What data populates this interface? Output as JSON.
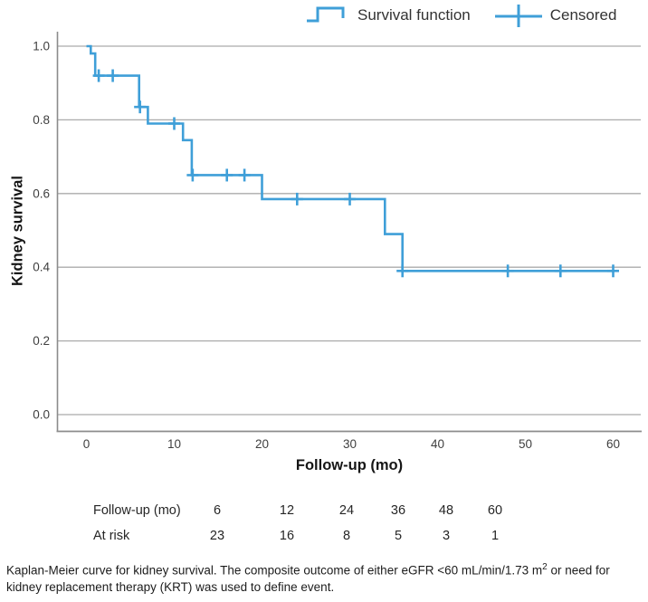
{
  "colors": {
    "curve_blue": "#3f9fd8",
    "grid_gray": "#ababab",
    "axis_gray": "#8c8c8c",
    "tick_text": "#3f3f3f",
    "title_text": "#161616",
    "legend_text": "#333333",
    "table_text": "#262626",
    "caption_text": "#1c1c1c"
  },
  "chart_data": {
    "type": "line",
    "subtype": "kaplan_meier_step",
    "title": "",
    "xlabel": "Follow-up (mo)",
    "ylabel": "Kidney survival",
    "xlim": [
      0,
      62
    ],
    "ylim": [
      0.0,
      1.05
    ],
    "x_ticks": [
      0,
      10,
      20,
      30,
      40,
      50,
      60
    ],
    "x_tick_labels": [
      "0",
      "10",
      "20",
      "30",
      "40",
      "50",
      "60"
    ],
    "y_ticks": [
      0.0,
      0.2,
      0.4,
      0.6,
      0.8,
      1.0
    ],
    "y_tick_labels": [
      "0.0",
      "0.2",
      "0.4",
      "0.6",
      "0.8",
      "1.0"
    ],
    "grid": "horizontal",
    "legend_position": "top",
    "legend_labels": [
      "Survival function",
      "Censored"
    ],
    "survival_steps": [
      [
        0,
        1.0
      ],
      [
        0.5,
        0.98
      ],
      [
        1,
        0.92
      ],
      [
        6,
        0.835
      ],
      [
        7,
        0.79
      ],
      [
        11,
        0.745
      ],
      [
        12,
        0.65
      ],
      [
        20,
        0.585
      ],
      [
        34,
        0.49
      ],
      [
        36,
        0.39
      ],
      [
        60,
        0.39
      ]
    ],
    "censored_points": [
      [
        1.4,
        0.92
      ],
      [
        3,
        0.92
      ],
      [
        6.1,
        0.835
      ],
      [
        10,
        0.79
      ],
      [
        12.1,
        0.65
      ],
      [
        16,
        0.65
      ],
      [
        18,
        0.65
      ],
      [
        24,
        0.585
      ],
      [
        30,
        0.585
      ],
      [
        36,
        0.39
      ],
      [
        48,
        0.39
      ],
      [
        54,
        0.39
      ],
      [
        60,
        0.39
      ]
    ]
  },
  "risk_table": {
    "rows": [
      {
        "label": "Follow-up (mo)",
        "values": [
          "6",
          "12",
          "24",
          "36",
          "48",
          "60"
        ]
      },
      {
        "label": "At risk",
        "values": [
          "23",
          "16",
          "8",
          "5",
          "3",
          "1"
        ]
      }
    ]
  },
  "caption": {
    "part1": "Kaplan-Meier curve for kidney survival. The composite outcome of either eGFR <60 mL/min/1.73 m",
    "sup": "2",
    "part2": " or need for kidney replacement therapy (KRT) was used to define event."
  }
}
